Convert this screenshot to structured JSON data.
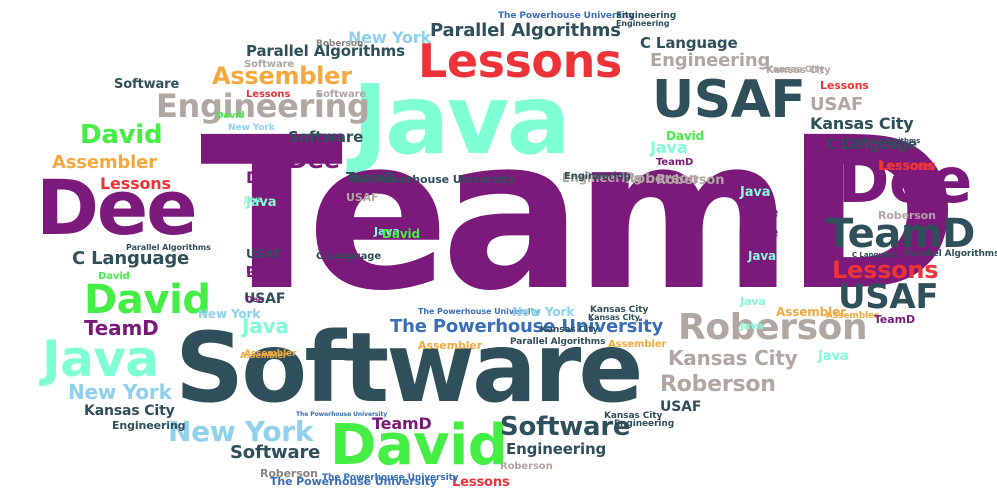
{
  "colors": {
    "purple": "#7c1a7c",
    "mint": "#7fffd4",
    "slate": "#2f4f5a",
    "red": "#ee3338",
    "orange": "#f4a940",
    "green": "#44ee44",
    "lightblue": "#8fd0ee",
    "gray": "#b0a6a2",
    "darkgray": "#8a8480",
    "blue": "#3a6fb8"
  },
  "words": [
    {
      "text": "TeamD",
      "color": "purple"
    },
    {
      "text": "Software",
      "color": "slate"
    },
    {
      "text": "Java",
      "color": "mint"
    },
    {
      "text": "Lessons",
      "color": "red"
    },
    {
      "text": "USAF",
      "color": "slate"
    },
    {
      "text": "Dee",
      "color": "purple"
    },
    {
      "text": "Dee",
      "color": "purple"
    },
    {
      "text": "TeamD",
      "color": "slate"
    },
    {
      "text": "Lessons",
      "color": "red"
    },
    {
      "text": "USAF",
      "color": "slate"
    },
    {
      "text": "Roberson",
      "color": "gray"
    },
    {
      "text": "Java",
      "color": "mint"
    },
    {
      "text": "David",
      "color": "green"
    },
    {
      "text": "David",
      "color": "green"
    },
    {
      "text": "David",
      "color": "green"
    },
    {
      "text": "Engineering",
      "color": "gray"
    },
    {
      "text": "Assembler",
      "color": "orange"
    },
    {
      "text": "Parallel Algorithms",
      "color": "slate"
    },
    {
      "text": "Parallel Algorithms",
      "color": "slate"
    },
    {
      "text": "C Language",
      "color": "slate"
    },
    {
      "text": "C Language",
      "color": "slate"
    },
    {
      "text": "New York",
      "color": "lightblue"
    },
    {
      "text": "New York",
      "color": "lightblue"
    },
    {
      "text": "New York",
      "color": "lightblue"
    },
    {
      "text": "The Powerhouse University",
      "color": "blue"
    },
    {
      "text": "The Powerhouse University",
      "color": "slate"
    },
    {
      "text": "Kansas City",
      "color": "gray"
    },
    {
      "text": "Kansas City",
      "color": "slate"
    },
    {
      "text": "Roberson",
      "color": "gray"
    },
    {
      "text": "Software",
      "color": "slate"
    },
    {
      "text": "Software",
      "color": "slate"
    },
    {
      "text": "TeamD",
      "color": "purple"
    },
    {
      "text": "TeamD",
      "color": "purple"
    },
    {
      "text": "Java",
      "color": "mint"
    },
    {
      "text": "Java",
      "color": "mint"
    },
    {
      "text": "Engineering",
      "color": "gray"
    },
    {
      "text": "Engineering",
      "color": "slate"
    },
    {
      "text": "Assembler",
      "color": "orange"
    },
    {
      "text": "Lessons",
      "color": "red"
    },
    {
      "text": "Lessons",
      "color": "red"
    },
    {
      "text": "USAF",
      "color": "slate"
    },
    {
      "text": "USAF",
      "color": "slate"
    },
    {
      "text": "Dee",
      "color": "purple"
    },
    {
      "text": "Dee",
      "color": "purple"
    },
    {
      "text": "Dee",
      "color": "purple"
    },
    {
      "text": "Roberson",
      "color": "gray"
    },
    {
      "text": "Roberson",
      "color": "gray"
    },
    {
      "text": "David",
      "color": "green"
    },
    {
      "text": "Kansas City",
      "color": "slate"
    },
    {
      "text": "Engineering",
      "color": "slate"
    },
    {
      "text": "Software",
      "color": "slate"
    },
    {
      "text": "Lessons",
      "color": "red"
    },
    {
      "text": "USAF",
      "color": "gray"
    },
    {
      "text": "Kansas City",
      "color": "gray"
    },
    {
      "text": "Java",
      "color": "mint"
    },
    {
      "text": "Java",
      "color": "mint"
    },
    {
      "text": "Dee",
      "color": "purple"
    },
    {
      "text": "USAF",
      "color": "purple"
    },
    {
      "text": "TeamD",
      "color": "slate"
    },
    {
      "text": "The Powerhouse University",
      "color": "slate"
    },
    {
      "text": "Parallel Algorithms",
      "color": "slate"
    },
    {
      "text": "Assembler",
      "color": "orange"
    },
    {
      "text": "Assembler",
      "color": "orange"
    },
    {
      "text": "Assembler",
      "color": "orange"
    },
    {
      "text": "Assembler",
      "color": "orange"
    },
    {
      "text": "Roberson",
      "color": "gray"
    },
    {
      "text": "Kansas City",
      "color": "gray"
    },
    {
      "text": "Java",
      "color": "mint"
    },
    {
      "text": "TeamD",
      "color": "purple"
    },
    {
      "text": "Software",
      "color": "gray"
    },
    {
      "text": "Roberson",
      "color": "gray"
    },
    {
      "text": "Lessons",
      "color": "red"
    },
    {
      "text": "Parallel Algorithms",
      "color": "slate"
    },
    {
      "text": "C Language",
      "color": "slate"
    },
    {
      "text": "C Language",
      "color": "slate"
    },
    {
      "text": "The Powerhouse University",
      "color": "blue"
    },
    {
      "text": "The Powerhouse University",
      "color": "blue"
    },
    {
      "text": "New York",
      "color": "lightblue"
    },
    {
      "text": "New York",
      "color": "lightblue"
    },
    {
      "text": "Engineering",
      "color": "gray"
    },
    {
      "text": "Engineering",
      "color": "slate"
    },
    {
      "text": "Kansas City",
      "color": "slate"
    },
    {
      "text": "Kansas City",
      "color": "slate"
    },
    {
      "text": "Roberson",
      "color": "gray"
    },
    {
      "text": "Java",
      "color": "mint"
    },
    {
      "text": "Java",
      "color": "mint"
    },
    {
      "text": "David",
      "color": "green"
    },
    {
      "text": "David",
      "color": "green"
    },
    {
      "text": "Software",
      "color": "slate"
    },
    {
      "text": "Engineering",
      "color": "slate"
    },
    {
      "text": "USAF",
      "color": "slate"
    },
    {
      "text": "Assembler",
      "color": "orange"
    },
    {
      "text": "Lessons",
      "color": "red"
    },
    {
      "text": "Dee",
      "color": "purple"
    },
    {
      "text": "Dee",
      "color": "purple"
    },
    {
      "text": "Parallel Algorithms",
      "color": "slate"
    },
    {
      "text": "Parallel Algorithms",
      "color": "slate"
    },
    {
      "text": "C Language",
      "color": "slate"
    },
    {
      "text": "New York",
      "color": "lightblue"
    },
    {
      "text": "The Powerhouse University",
      "color": "blue"
    },
    {
      "text": "TeamD",
      "color": "purple"
    },
    {
      "text": "David",
      "color": "green"
    },
    {
      "text": "Engineering",
      "color": "slate"
    },
    {
      "text": "Engineering",
      "color": "slate"
    },
    {
      "text": "Roberson",
      "color": "gray"
    },
    {
      "text": "Assembler",
      "color": "orange"
    },
    {
      "text": "Software",
      "color": "gray"
    },
    {
      "text": "Java",
      "color": "mint"
    },
    {
      "text": "Java",
      "color": "mint"
    },
    {
      "text": "Java",
      "color": "mint"
    },
    {
      "text": "Dee",
      "color": "purple"
    },
    {
      "text": "Kansas City",
      "color": "slate"
    },
    {
      "text": "The Powerhouse University",
      "color": "blue"
    },
    {
      "text": "Kansas City",
      "color": "gray"
    },
    {
      "text": "Lessons",
      "color": "red"
    }
  ]
}
